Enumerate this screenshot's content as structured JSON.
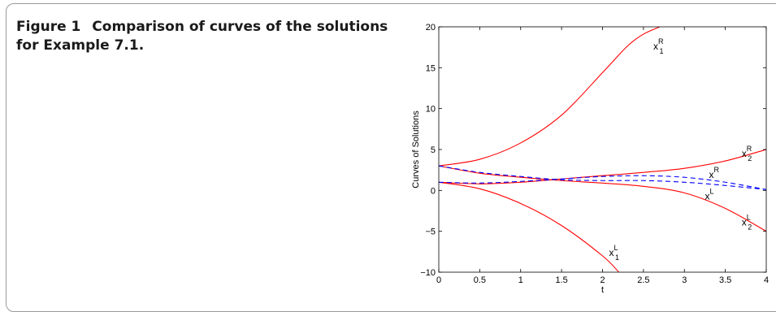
{
  "figure": {
    "label": "Figure 1",
    "caption": "Comparison of curves of the solutions for Example 7.1."
  },
  "chart_data": {
    "type": "line",
    "xlabel": "t",
    "ylabel": "Curves of Solutions",
    "xlim": [
      0,
      4
    ],
    "ylim": [
      -10,
      20
    ],
    "xticks": [
      0,
      0.5,
      1,
      1.5,
      2,
      2.5,
      3,
      3.5,
      4
    ],
    "xtick_labels": [
      "0",
      "0.5",
      "1",
      "1.5",
      "2",
      "2.5",
      "3",
      "3.5",
      "4"
    ],
    "yticks": [
      -10,
      -5,
      0,
      5,
      10,
      15,
      20
    ],
    "ytick_labels": [
      "−10",
      "−5",
      "0",
      "5",
      "10",
      "15",
      "20"
    ],
    "grid": false,
    "series": [
      {
        "id": "x1R",
        "color": "#ff0000",
        "dash": "solid",
        "x": [
          0,
          0.5,
          1,
          1.5,
          2,
          2.3,
          2.5,
          2.7
        ],
        "y": [
          3,
          3.8,
          5.8,
          9.2,
          14.4,
          17.6,
          19.1,
          20
        ]
      },
      {
        "id": "x1L",
        "color": "#ff0000",
        "dash": "solid",
        "x": [
          0,
          0.5,
          1,
          1.5,
          2,
          2.2
        ],
        "y": [
          1,
          0.2,
          -1.6,
          -4.3,
          -8.0,
          -10
        ]
      },
      {
        "id": "x2R",
        "color": "#ff0000",
        "dash": "solid",
        "x": [
          0,
          0.5,
          1,
          1.5,
          2,
          2.5,
          3,
          3.5,
          4
        ],
        "y": [
          1,
          0.8,
          1.0,
          1.4,
          1.8,
          2.2,
          2.7,
          3.6,
          5.0
        ]
      },
      {
        "id": "x2L",
        "color": "#ff0000",
        "dash": "solid",
        "x": [
          0,
          0.5,
          1,
          1.5,
          2,
          2.5,
          3,
          3.5,
          4
        ],
        "y": [
          3,
          2.1,
          1.6,
          1.2,
          0.9,
          0.5,
          -0.3,
          -2.2,
          -5.0
        ]
      },
      {
        "id": "xR",
        "color": "#0000ff",
        "dash": "dashed",
        "x": [
          0,
          0.5,
          1,
          1.5,
          2,
          2.5,
          3,
          3.5,
          4
        ],
        "y": [
          1,
          0.9,
          1.1,
          1.4,
          1.7,
          1.8,
          1.6,
          1.0,
          0.1
        ]
      },
      {
        "id": "xL",
        "color": "#0000ff",
        "dash": "dashed",
        "x": [
          0,
          0.5,
          1,
          1.5,
          2,
          2.5,
          3,
          3.5,
          4
        ],
        "y": [
          3,
          2.2,
          1.7,
          1.3,
          1.2,
          1.2,
          1.0,
          0.6,
          0.1
        ]
      }
    ],
    "annotations": [
      {
        "base": "x",
        "sub": "1",
        "sup": "R",
        "x": 2.62,
        "y": 17.2
      },
      {
        "base": "x",
        "sub": "2",
        "sup": "R",
        "x": 3.7,
        "y": 4.1
      },
      {
        "base": "x",
        "sub": "",
        "sup": "R",
        "x": 3.3,
        "y": 1.5
      },
      {
        "base": "x",
        "sub": "",
        "sup": "L",
        "x": 3.25,
        "y": -1.1
      },
      {
        "base": "x",
        "sub": "2",
        "sup": "L",
        "x": 3.7,
        "y": -4.3
      },
      {
        "base": "x",
        "sub": "1",
        "sup": "L",
        "x": 2.08,
        "y": -8.0
      }
    ]
  }
}
